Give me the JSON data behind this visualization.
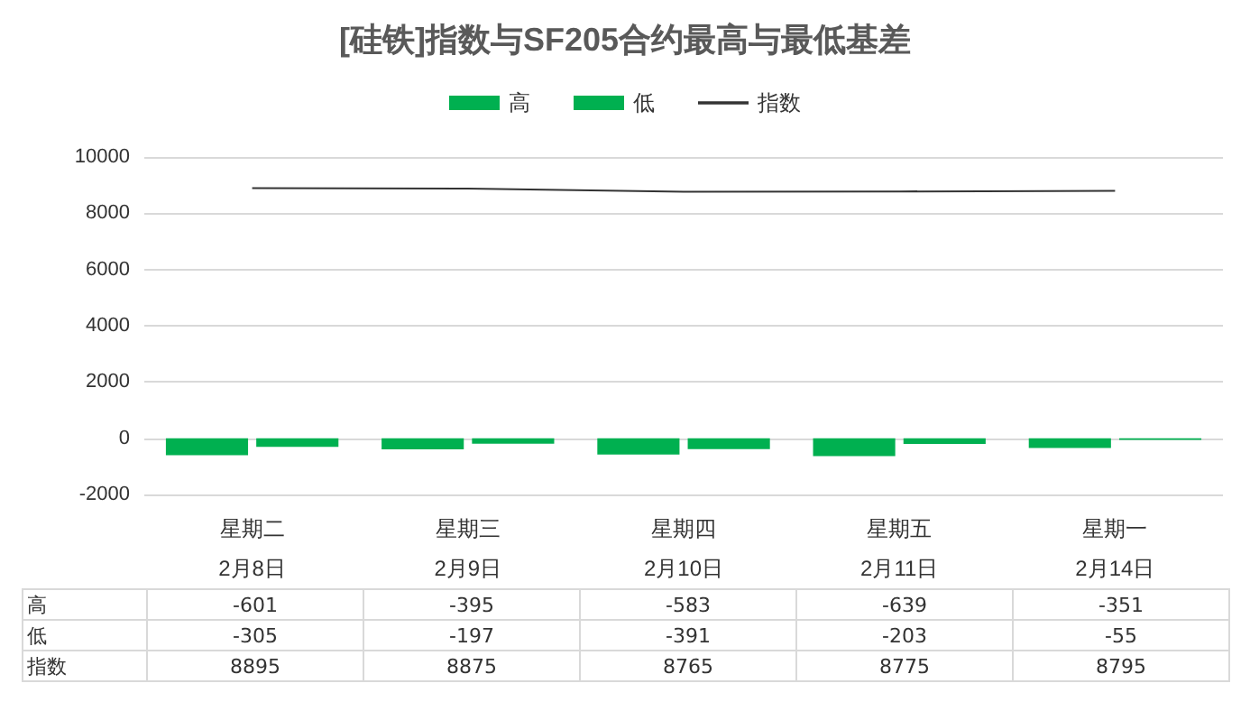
{
  "chart_data": {
    "type": "bar",
    "title": "[硅铁]指数与SF205合约最高与最低基差",
    "categories": [
      "星期二\n2月8日",
      "星期三\n2月9日",
      "星期四\n2月10日",
      "星期五\n2月11日",
      "星期一\n2月14日"
    ],
    "series": [
      {
        "name": "高",
        "color": "#00b050",
        "values": [
          -601,
          -395,
          -583,
          -639,
          -351
        ]
      },
      {
        "name": "低",
        "color": "#00b050",
        "values": [
          -305,
          -197,
          -391,
          -203,
          -55
        ]
      },
      {
        "name": "指数",
        "type": "line",
        "color": "#333333",
        "values": [
          8895,
          8875,
          8765,
          8775,
          8795
        ]
      }
    ],
    "ylim": [
      -2000,
      10000
    ],
    "yticks": [
      -2000,
      0,
      2000,
      4000,
      6000,
      8000,
      10000
    ],
    "grid": "y",
    "legend": "top",
    "data_labels": true,
    "marker": "none"
  }
}
